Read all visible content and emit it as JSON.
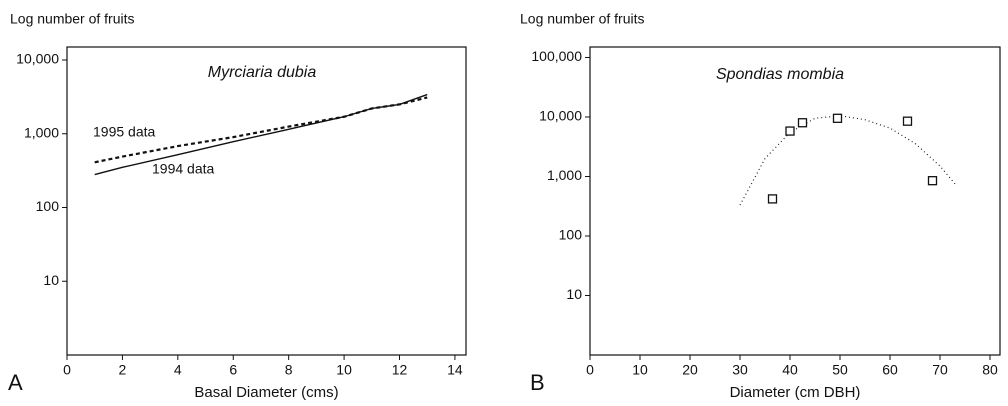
{
  "chart_data": [
    {
      "type": "line",
      "panel_label": "A",
      "title": "Myrciaria dubia",
      "y_label": "Log number of fruits",
      "x_label": "Basal Diameter (cms)",
      "x": [
        1,
        2,
        4,
        6,
        8,
        10,
        11,
        12,
        13
      ],
      "series": [
        {
          "name": "1995 data",
          "color": "#111111",
          "style": "dashed",
          "values": [
            410,
            490,
            680,
            900,
            1250,
            1700,
            2200,
            2500,
            3100
          ]
        },
        {
          "name": "1994 data",
          "color": "#111111",
          "style": "solid",
          "values": [
            280,
            350,
            520,
            780,
            1150,
            1700,
            2200,
            2500,
            3400
          ]
        }
      ],
      "xlim": [
        0,
        14.4
      ],
      "xticks": [
        0,
        2,
        4,
        6,
        8,
        10,
        12,
        14
      ],
      "ylim": [
        1,
        15000
      ],
      "log_y": true,
      "yticks": [
        10,
        100,
        {
          "value": 1000,
          "label": "1,000"
        },
        {
          "value": 10000,
          "label": "10,000"
        }
      ]
    },
    {
      "type": "scatter",
      "panel_label": "B",
      "title": "Spondias mombia",
      "y_label": "Log number of fruits",
      "x_label": "Diameter (cm DBH)",
      "x": [
        36.5,
        40,
        42.5,
        49.5,
        63.5,
        68.5
      ],
      "values": [
        420,
        5800,
        8000,
        9500,
        8500,
        850
      ],
      "color": "#111111",
      "curve": {
        "x": [
          30,
          35,
          40,
          45,
          50,
          55,
          60,
          65,
          70,
          73
        ],
        "values": [
          330,
          2000,
          5500,
          9500,
          10500,
          9000,
          6500,
          3600,
          1500,
          750
        ]
      },
      "xlim": [
        0,
        82
      ],
      "xticks": [
        0,
        10,
        20,
        30,
        40,
        50,
        60,
        70,
        80
      ],
      "ylim": [
        1,
        150000
      ],
      "log_y": true,
      "yticks": [
        10,
        100,
        {
          "value": 1000,
          "label": "1,000"
        },
        {
          "value": 10000,
          "label": "10,000"
        },
        {
          "value": 100000,
          "label": "100,000"
        }
      ]
    }
  ]
}
